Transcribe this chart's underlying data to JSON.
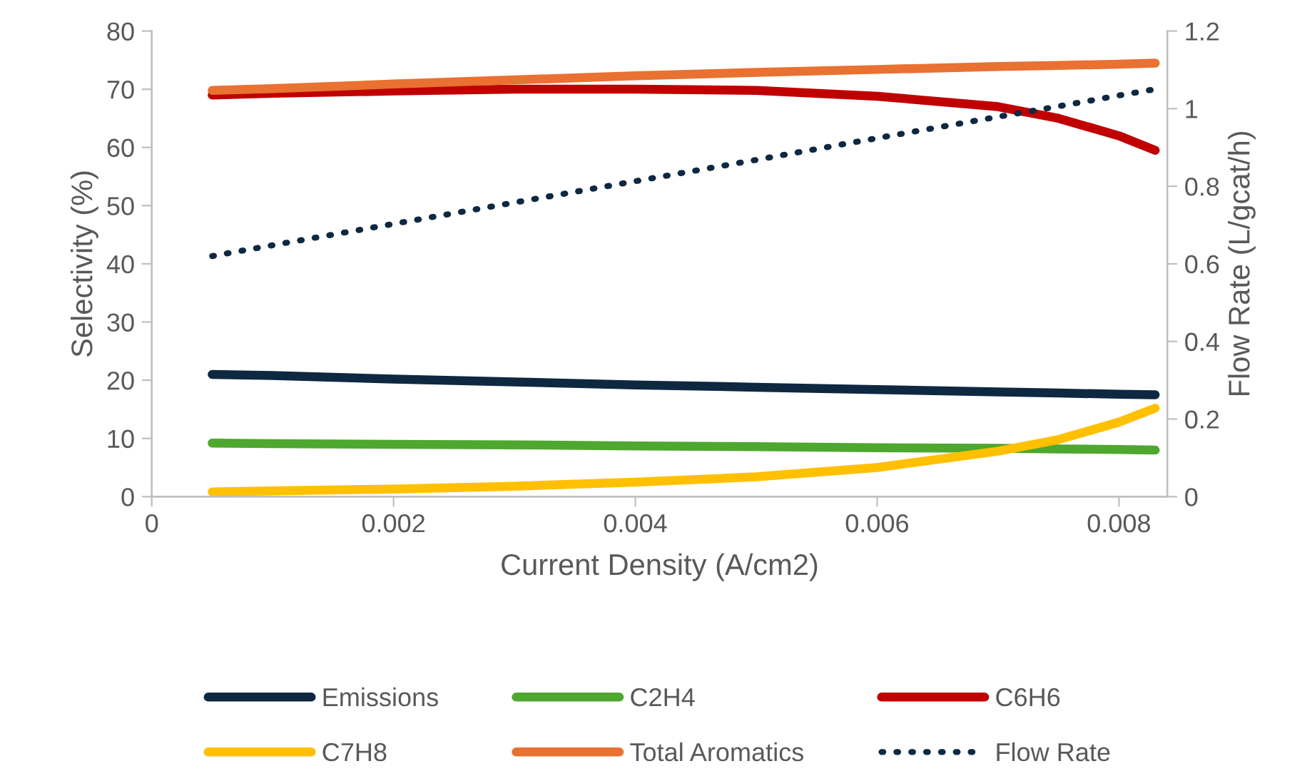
{
  "chart_data": {
    "type": "line",
    "xlabel": "Current Density (A/cm2)",
    "ylabel": "Selectivity (%)",
    "y2label": "Flow Rate (L/gcat/h)",
    "x": [
      0.0005,
      0.001,
      0.002,
      0.003,
      0.004,
      0.005,
      0.006,
      0.007,
      0.0075,
      0.008,
      0.0083
    ],
    "xlim": [
      0,
      0.0084
    ],
    "xticks": [
      0,
      0.002,
      0.004,
      0.006,
      0.008
    ],
    "ylim": [
      0,
      80
    ],
    "yticks": [
      0,
      10,
      20,
      30,
      40,
      50,
      60,
      70,
      80
    ],
    "y2lim": [
      0,
      1.2
    ],
    "y2ticks": [
      0,
      0.2,
      0.4,
      0.6,
      0.8,
      1,
      1.2
    ],
    "grid": false,
    "legend": "bottom",
    "line_style": "solid",
    "series": [
      {
        "name": "Emissions",
        "color": "#0e2841",
        "values": [
          21,
          20.8,
          20.2,
          19.7,
          19.2,
          18.8,
          18.4,
          18.0,
          17.8,
          17.6,
          17.5
        ]
      },
      {
        "name": "C2H4",
        "color": "#4ea72e",
        "values": [
          9.2,
          9.1,
          9.0,
          8.9,
          8.7,
          8.6,
          8.4,
          8.3,
          8.2,
          8.1,
          8.0
        ]
      },
      {
        "name": "C6H6",
        "color": "#c00000",
        "values": [
          69,
          69.3,
          69.7,
          70,
          70,
          69.8,
          68.8,
          67,
          65,
          62,
          59.5
        ]
      },
      {
        "name": "C7H8",
        "color": "#ffc000",
        "values": [
          0.8,
          1.0,
          1.3,
          1.8,
          2.5,
          3.4,
          5.0,
          7.8,
          9.8,
          12.8,
          15.2
        ]
      },
      {
        "name": "Total Aromatics",
        "color": "#e97132",
        "values": [
          69.8,
          70.1,
          70.9,
          71.6,
          72.3,
          72.9,
          73.4,
          73.9,
          74.1,
          74.3,
          74.5
        ]
      },
      {
        "name": "Flow Rate",
        "color": "#0e2841",
        "axis": "y2",
        "line_style": "dotted",
        "values": [
          0.62,
          0.648,
          0.703,
          0.758,
          0.813,
          0.868,
          0.924,
          0.979,
          1.006,
          1.034,
          1.05
        ]
      }
    ]
  }
}
